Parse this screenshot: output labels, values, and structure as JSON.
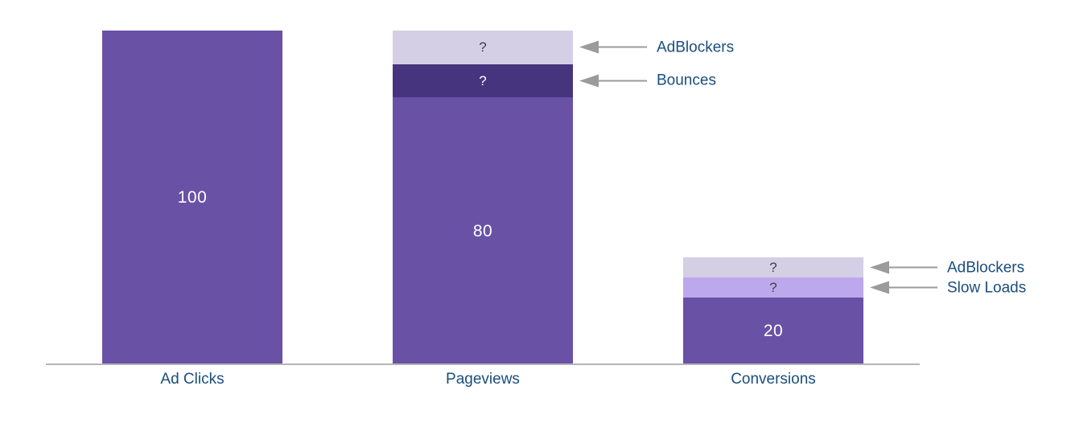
{
  "colors": {
    "main": {
      "fill": "#6951A6",
      "text": "#FFFFFF"
    },
    "dark": {
      "fill": "#46357E",
      "text": "#FFFFFF"
    },
    "lavender": {
      "fill": "#D5CFE6",
      "text": "#3F3F3F"
    },
    "light": {
      "fill": "#BCA8EC",
      "text": "#3F3F3F"
    },
    "annotation_text": "#1A4E7C",
    "axis_label_text": "#1A4E7C",
    "arrow": "#9B9B9B",
    "axis_line": "#B5B5B8",
    "background": "#FFFFFF"
  },
  "chart_data": {
    "type": "bar",
    "subtype": "stacked-funnel",
    "title": "",
    "xlabel": "",
    "ylabel": "",
    "categories": [
      "Ad Clicks",
      "Pageviews",
      "Conversions"
    ],
    "ylim": [
      0,
      100
    ],
    "grid": false,
    "legend_position": "none (arrow annotations at right of bars)",
    "bars": [
      {
        "category": "Ad Clicks",
        "total": 100,
        "segments": [
          {
            "name": "Ad Clicks",
            "display_label": "100",
            "value": 100,
            "color": "main"
          }
        ]
      },
      {
        "category": "Pageviews",
        "total": 100,
        "segments": [
          {
            "name": "Pageviews",
            "display_label": "80",
            "value": 80,
            "color": "main"
          },
          {
            "name": "Bounces",
            "display_label": "?",
            "value": 10,
            "value_estimated": true,
            "color": "dark",
            "annotation": "Bounces"
          },
          {
            "name": "AdBlockers",
            "display_label": "?",
            "value": 10,
            "value_estimated": true,
            "color": "lavender",
            "annotation": "AdBlockers"
          }
        ]
      },
      {
        "category": "Conversions",
        "total": 32,
        "segments": [
          {
            "name": "Conversions",
            "display_label": "20",
            "value": 20,
            "color": "main"
          },
          {
            "name": "Slow Loads",
            "display_label": "?",
            "value": 6,
            "value_estimated": true,
            "color": "light",
            "annotation": "Slow Loads"
          },
          {
            "name": "AdBlockers",
            "display_label": "?",
            "value": 6,
            "value_estimated": true,
            "color": "lavender",
            "annotation": "AdBlockers"
          }
        ]
      }
    ]
  }
}
